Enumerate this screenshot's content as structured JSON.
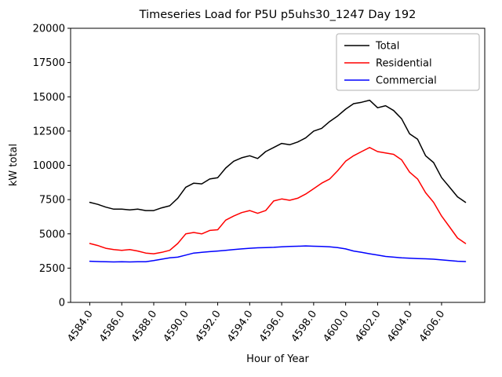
{
  "chart_data": {
    "type": "line",
    "title": "Timeseries Load for P5U p5uhs30_1247  Day 192",
    "xlabel": "Hour of Year",
    "ylabel": "kW total",
    "xlim": [
      4582.8,
      4608.7
    ],
    "ylim": [
      0,
      20000
    ],
    "grid": false,
    "legend_position": "upper right",
    "x_ticks": [
      4584,
      4586,
      4588,
      4590,
      4592,
      4594,
      4596,
      4598,
      4600,
      4602,
      4604,
      4606
    ],
    "x_tick_labels": [
      "4584.0",
      "4586.0",
      "4588.0",
      "4590.0",
      "4592.0",
      "4594.0",
      "4596.0",
      "4598.0",
      "4600.0",
      "4602.0",
      "4604.0",
      "4606.0"
    ],
    "y_ticks": [
      0,
      2500,
      5000,
      7500,
      10000,
      12500,
      15000,
      17500,
      20000
    ],
    "y_tick_labels": [
      "0",
      "2500",
      "5000",
      "7500",
      "10000",
      "12500",
      "15000",
      "17500",
      "20000"
    ],
    "x": [
      4584.0,
      4584.5,
      4585.0,
      4585.5,
      4586.0,
      4586.5,
      4587.0,
      4587.5,
      4588.0,
      4588.5,
      4589.0,
      4589.5,
      4590.0,
      4590.5,
      4591.0,
      4591.5,
      4592.0,
      4592.5,
      4593.0,
      4593.5,
      4594.0,
      4594.5,
      4595.0,
      4595.5,
      4596.0,
      4596.5,
      4597.0,
      4597.5,
      4598.0,
      4598.5,
      4599.0,
      4599.5,
      4600.0,
      4600.5,
      4601.0,
      4601.5,
      4602.0,
      4602.5,
      4603.0,
      4603.5,
      4604.0,
      4604.5,
      4605.0,
      4605.5,
      4606.0,
      4606.5,
      4607.0,
      4607.5
    ],
    "series": [
      {
        "name": "Total",
        "color": "#000000",
        "values": [
          7300,
          7150,
          6950,
          6800,
          6800,
          6750,
          6800,
          6700,
          6700,
          6900,
          7050,
          7600,
          8400,
          8700,
          8650,
          9000,
          9100,
          9800,
          10300,
          10550,
          10700,
          10500,
          11000,
          11300,
          11600,
          11500,
          11700,
          12000,
          12500,
          12700,
          13200,
          13600,
          14100,
          14500,
          14600,
          14750,
          14200,
          14350,
          14000,
          13400,
          12300,
          11900,
          10700,
          10200,
          9100,
          8400,
          7700,
          7300
        ]
      },
      {
        "name": "Residential",
        "color": "#ff0000",
        "values": [
          4300,
          4150,
          3950,
          3850,
          3800,
          3850,
          3750,
          3600,
          3550,
          3650,
          3800,
          4300,
          5000,
          5100,
          5000,
          5250,
          5300,
          6000,
          6300,
          6550,
          6700,
          6500,
          6700,
          7400,
          7550,
          7450,
          7600,
          7900,
          8300,
          8700,
          9000,
          9600,
          10300,
          10700,
          11000,
          11300,
          11000,
          10900,
          10800,
          10400,
          9500,
          9000,
          8000,
          7300,
          6300,
          5500,
          4700,
          4300
        ]
      },
      {
        "name": "Commercial",
        "color": "#0000ff",
        "values": [
          3000,
          2980,
          2960,
          2950,
          2960,
          2950,
          2960,
          2970,
          3050,
          3150,
          3250,
          3300,
          3450,
          3600,
          3650,
          3700,
          3750,
          3800,
          3850,
          3900,
          3950,
          3980,
          4000,
          4020,
          4050,
          4080,
          4100,
          4120,
          4100,
          4080,
          4050,
          4000,
          3900,
          3750,
          3650,
          3550,
          3450,
          3350,
          3300,
          3250,
          3220,
          3200,
          3180,
          3150,
          3100,
          3050,
          3000,
          2980
        ]
      }
    ]
  }
}
